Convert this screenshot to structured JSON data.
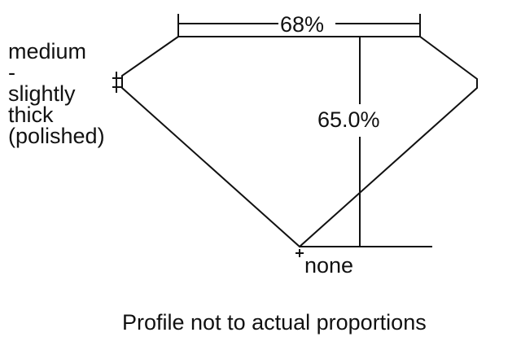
{
  "diagram": {
    "table_width_label": "68%",
    "depth_label": "65.0%",
    "girdle_lines": [
      "medium",
      "-",
      "slightly",
      "thick",
      "(polished)"
    ],
    "culet_label": "none",
    "footnote": "Profile not to actual proportions",
    "line_color": "#111111"
  }
}
